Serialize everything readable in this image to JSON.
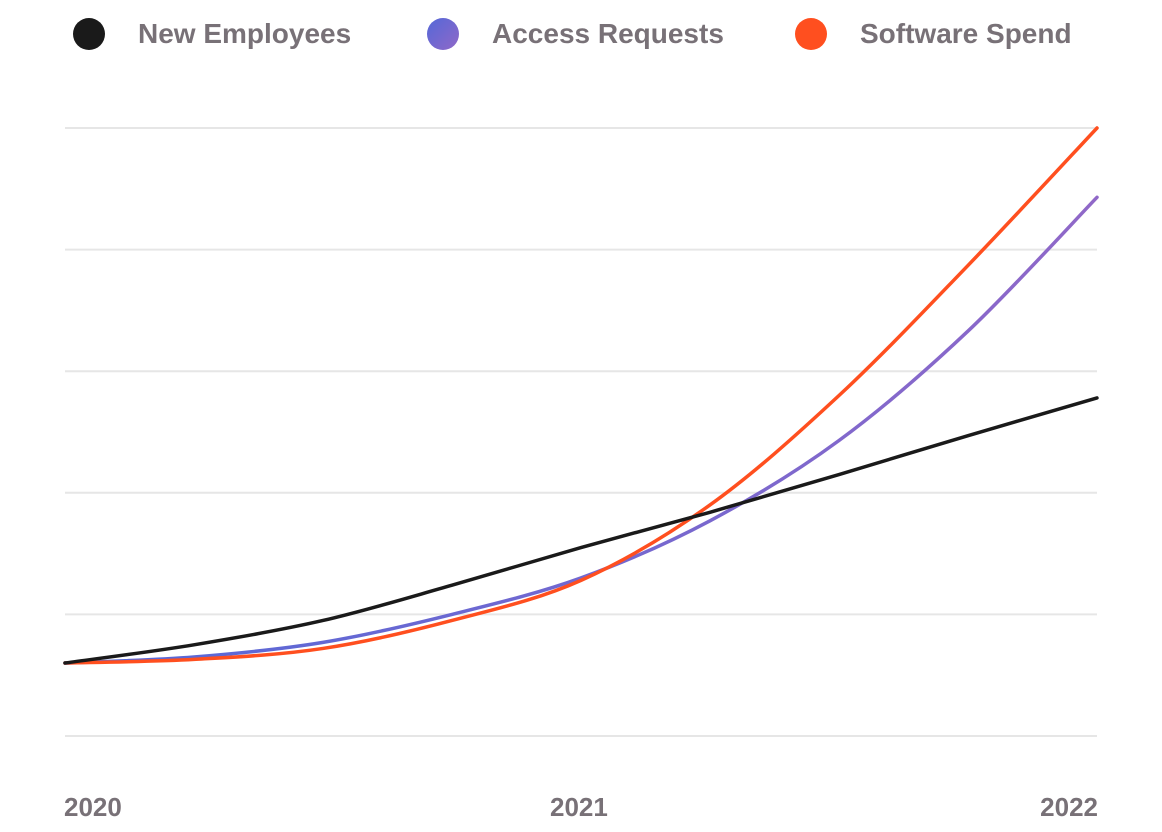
{
  "chart_data": {
    "type": "line",
    "title": "",
    "xlabel": "",
    "ylabel": "",
    "x_ticks": [
      "2020",
      "2021",
      "2022"
    ],
    "x": [
      0,
      0.25,
      0.5,
      0.75,
      1,
      1.25,
      1.5,
      1.75,
      2
    ],
    "xlim": [
      0,
      2
    ],
    "ylim": [
      0,
      5
    ],
    "y_gridlines": [
      0,
      1,
      2,
      3,
      4,
      5
    ],
    "grid": true,
    "legend_position": "top",
    "series": [
      {
        "name": "New Employees",
        "color": "#1a1a1a",
        "values": [
          0.6,
          0.75,
          0.95,
          1.24,
          1.55,
          1.84,
          2.15,
          2.47,
          2.78
        ]
      },
      {
        "name": "Access Requests",
        "color": "#7a68d0",
        "color_start": "#5468d8",
        "color_end": "#9068c8",
        "values": [
          0.6,
          0.65,
          0.77,
          1.0,
          1.3,
          1.77,
          2.43,
          3.33,
          4.43
        ]
      },
      {
        "name": "Software Spend",
        "color": "#ff4f1f",
        "values": [
          0.6,
          0.63,
          0.72,
          0.95,
          1.28,
          1.9,
          2.8,
          3.87,
          5.0
        ]
      }
    ]
  }
}
